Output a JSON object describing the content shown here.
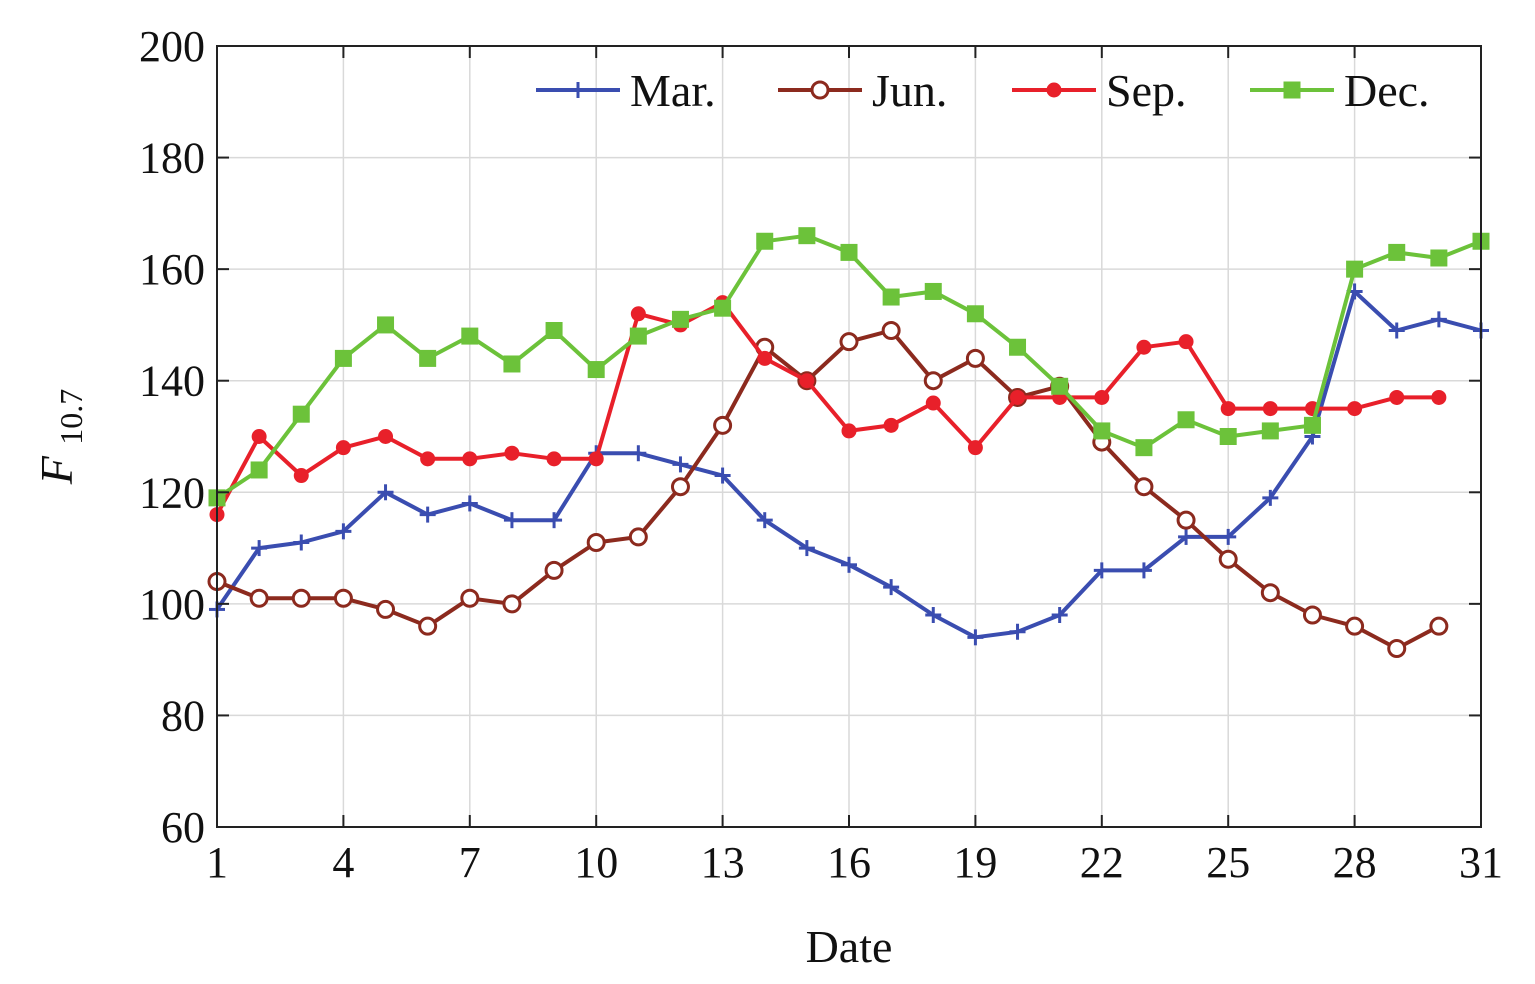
{
  "chart_data": {
    "type": "line",
    "title": "",
    "xlabel": "Date",
    "ylabel_main": "F",
    "ylabel_sub": "10.7",
    "xlim": [
      1,
      31
    ],
    "ylim": [
      60,
      200
    ],
    "x_ticks": [
      1,
      4,
      7,
      10,
      13,
      16,
      19,
      22,
      25,
      28,
      31
    ],
    "y_ticks": [
      60,
      80,
      100,
      120,
      140,
      160,
      180,
      200
    ],
    "grid": true,
    "legend_position": "top",
    "series": [
      {
        "name": "Mar.",
        "color": "#3a4db0",
        "marker": "plus",
        "x": [
          1,
          2,
          3,
          4,
          5,
          6,
          7,
          8,
          9,
          10,
          11,
          12,
          13,
          14,
          15,
          16,
          17,
          18,
          19,
          20,
          21,
          22,
          23,
          24,
          25,
          26,
          27,
          28,
          29,
          30,
          31
        ],
        "y": [
          99,
          110,
          111,
          113,
          120,
          116,
          118,
          115,
          115,
          127,
          127,
          125,
          123,
          115,
          110,
          107,
          103,
          98,
          94,
          95,
          98,
          106,
          106,
          112,
          112,
          119,
          130,
          156,
          149,
          151,
          149
        ]
      },
      {
        "name": "Jun.",
        "color": "#8c2a1e",
        "marker": "circle-open",
        "x": [
          1,
          2,
          3,
          4,
          5,
          6,
          7,
          8,
          9,
          10,
          11,
          12,
          13,
          14,
          15,
          16,
          17,
          18,
          19,
          20,
          21,
          22,
          23,
          24,
          25,
          26,
          27,
          28,
          29,
          30
        ],
        "y": [
          104,
          101,
          101,
          101,
          99,
          96,
          101,
          100,
          106,
          111,
          112,
          121,
          132,
          146,
          140,
          147,
          149,
          140,
          144,
          137,
          139,
          129,
          121,
          115,
          108,
          102,
          98,
          96,
          92,
          96
        ]
      },
      {
        "name": "Sep.",
        "color": "#e8202a",
        "marker": "circle-filled",
        "x": [
          1,
          2,
          3,
          4,
          5,
          6,
          7,
          8,
          9,
          10,
          11,
          12,
          13,
          14,
          15,
          16,
          17,
          18,
          19,
          20,
          21,
          22,
          23,
          24,
          25,
          26,
          27,
          28,
          29,
          30
        ],
        "y": [
          116,
          130,
          123,
          128,
          130,
          126,
          126,
          127,
          126,
          126,
          152,
          150,
          154,
          144,
          140,
          131,
          132,
          136,
          128,
          137,
          137,
          137,
          146,
          147,
          135,
          135,
          135,
          135,
          137,
          137
        ]
      },
      {
        "name": "Dec.",
        "color": "#6cc23a",
        "marker": "square",
        "x": [
          1,
          2,
          3,
          4,
          5,
          6,
          7,
          8,
          9,
          10,
          11,
          12,
          13,
          14,
          15,
          16,
          17,
          18,
          19,
          20,
          21,
          22,
          23,
          24,
          25,
          26,
          27,
          28,
          29,
          30,
          31
        ],
        "y": [
          119,
          124,
          134,
          144,
          150,
          144,
          148,
          143,
          149,
          142,
          148,
          151,
          153,
          165,
          166,
          163,
          155,
          156,
          152,
          146,
          139,
          131,
          128,
          133,
          130,
          131,
          132,
          160,
          163,
          162,
          165
        ]
      }
    ]
  }
}
